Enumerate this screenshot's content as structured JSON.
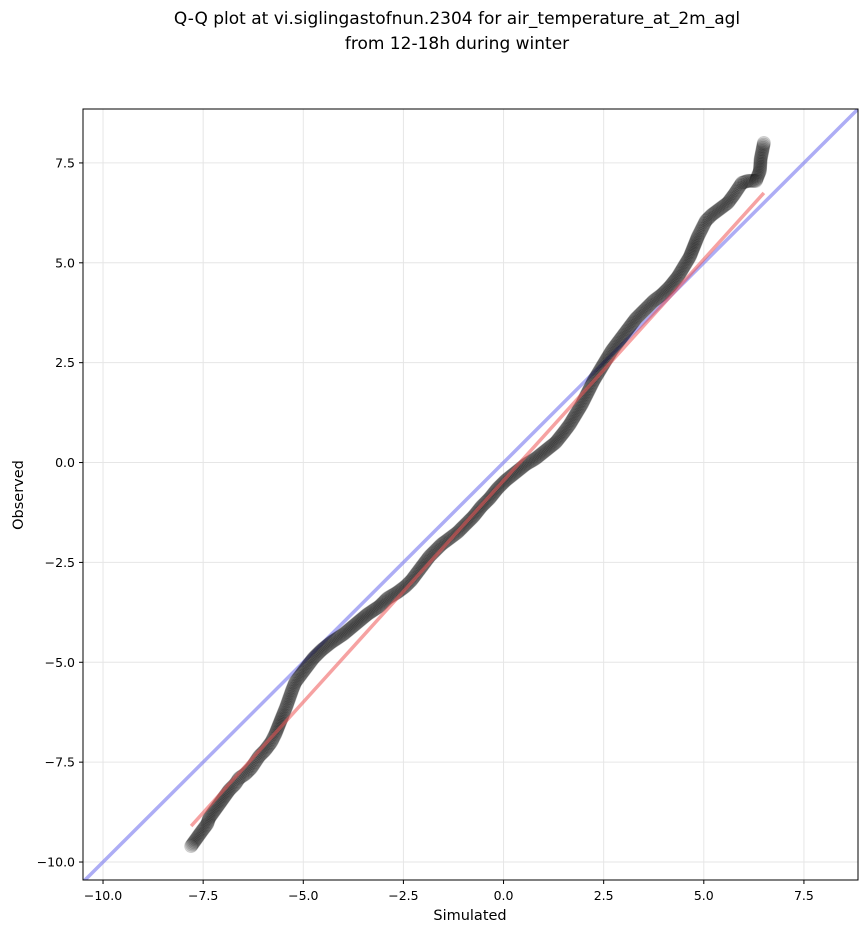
{
  "chart_data": {
    "type": "scatter",
    "title_lines": [
      "Q-Q plot at vi.siglingastofnun.2304 for air_temperature_at_2m_agl",
      "from 12-18h during winter"
    ],
    "xlabel": "Simulated",
    "ylabel": "Observed",
    "xlim": [
      -10.5,
      8.85
    ],
    "ylim": [
      -10.45,
      8.85
    ],
    "xticks": [
      -10.0,
      -7.5,
      -5.0,
      -2.5,
      0.0,
      2.5,
      5.0,
      7.5
    ],
    "yticks": [
      -10.0,
      -7.5,
      -5.0,
      -2.5,
      0.0,
      2.5,
      5.0,
      7.5
    ],
    "xtick_labels": [
      "−10.0",
      "−7.5",
      "−5.0",
      "−2.5",
      "0.0",
      "2.5",
      "5.0",
      "7.5"
    ],
    "ytick_labels": [
      "−10.0",
      "−7.5",
      "−5.0",
      "−2.5",
      "0.0",
      "2.5",
      "5.0",
      "7.5"
    ],
    "grid": true,
    "points": [
      [
        -7.8,
        -9.6
      ],
      [
        -7.55,
        -9.25
      ],
      [
        -7.4,
        -9.05
      ],
      [
        -7.35,
        -8.9
      ],
      [
        -6.85,
        -8.2
      ],
      [
        -6.7,
        -8.05
      ],
      [
        -6.6,
        -7.9
      ],
      [
        -6.45,
        -7.8
      ],
      [
        -6.3,
        -7.65
      ],
      [
        -6.2,
        -7.5
      ],
      [
        -6.1,
        -7.35
      ],
      [
        -5.95,
        -7.2
      ],
      [
        -5.8,
        -7.0
      ],
      [
        -5.7,
        -6.8
      ],
      [
        -5.6,
        -6.55
      ],
      [
        -5.5,
        -6.3
      ],
      [
        -5.42,
        -6.1
      ],
      [
        -5.35,
        -5.9
      ],
      [
        -5.28,
        -5.7
      ],
      [
        -5.2,
        -5.5
      ],
      [
        -5.05,
        -5.3
      ],
      [
        -4.9,
        -5.1
      ],
      [
        -4.75,
        -4.9
      ],
      [
        -4.55,
        -4.7
      ],
      [
        -4.3,
        -4.5
      ],
      [
        -4.0,
        -4.3
      ],
      [
        -3.7,
        -4.05
      ],
      [
        -3.4,
        -3.8
      ],
      [
        -3.1,
        -3.6
      ],
      [
        -2.9,
        -3.4
      ],
      [
        -2.65,
        -3.25
      ],
      [
        -2.45,
        -3.1
      ],
      [
        -2.3,
        -2.95
      ],
      [
        -2.15,
        -2.75
      ],
      [
        -2.0,
        -2.55
      ],
      [
        -1.85,
        -2.35
      ],
      [
        -1.7,
        -2.2
      ],
      [
        -1.55,
        -2.05
      ],
      [
        -1.35,
        -1.9
      ],
      [
        -1.15,
        -1.75
      ],
      [
        -0.95,
        -1.55
      ],
      [
        -0.75,
        -1.35
      ],
      [
        -0.55,
        -1.1
      ],
      [
        -0.35,
        -0.9
      ],
      [
        -0.15,
        -0.65
      ],
      [
        0.05,
        -0.45
      ],
      [
        0.3,
        -0.25
      ],
      [
        0.55,
        -0.05
      ],
      [
        0.8,
        0.1
      ],
      [
        1.05,
        0.3
      ],
      [
        1.3,
        0.5
      ],
      [
        1.5,
        0.75
      ],
      [
        1.65,
        0.95
      ],
      [
        1.8,
        1.2
      ],
      [
        1.95,
        1.45
      ],
      [
        2.1,
        1.75
      ],
      [
        2.25,
        2.05
      ],
      [
        2.4,
        2.3
      ],
      [
        2.55,
        2.55
      ],
      [
        2.7,
        2.8
      ],
      [
        2.85,
        3.0
      ],
      [
        3.0,
        3.2
      ],
      [
        3.15,
        3.4
      ],
      [
        3.3,
        3.6
      ],
      [
        3.45,
        3.75
      ],
      [
        3.6,
        3.9
      ],
      [
        3.75,
        4.05
      ],
      [
        3.95,
        4.2
      ],
      [
        4.15,
        4.4
      ],
      [
        4.35,
        4.65
      ],
      [
        4.5,
        4.9
      ],
      [
        4.65,
        5.15
      ],
      [
        4.75,
        5.4
      ],
      [
        4.85,
        5.65
      ],
      [
        4.95,
        5.85
      ],
      [
        5.05,
        6.05
      ],
      [
        5.2,
        6.2
      ],
      [
        5.4,
        6.35
      ],
      [
        5.6,
        6.5
      ],
      [
        5.75,
        6.7
      ],
      [
        5.85,
        6.85
      ],
      [
        5.95,
        7.0
      ],
      [
        6.1,
        7.05
      ],
      [
        6.3,
        7.05
      ],
      [
        6.4,
        7.3
      ],
      [
        6.42,
        7.6
      ],
      [
        6.5,
        8.0
      ]
    ],
    "identity_line": [
      [
        -10.5,
        -10.5
      ],
      [
        8.85,
        8.85
      ]
    ],
    "fit_line": [
      [
        -7.8,
        -9.1
      ],
      [
        6.5,
        6.75
      ]
    ],
    "colors": {
      "points": "#000000",
      "identity_line": "#7777ee",
      "fit_line": "#ee5555",
      "grid": "#e6e6e6"
    }
  }
}
